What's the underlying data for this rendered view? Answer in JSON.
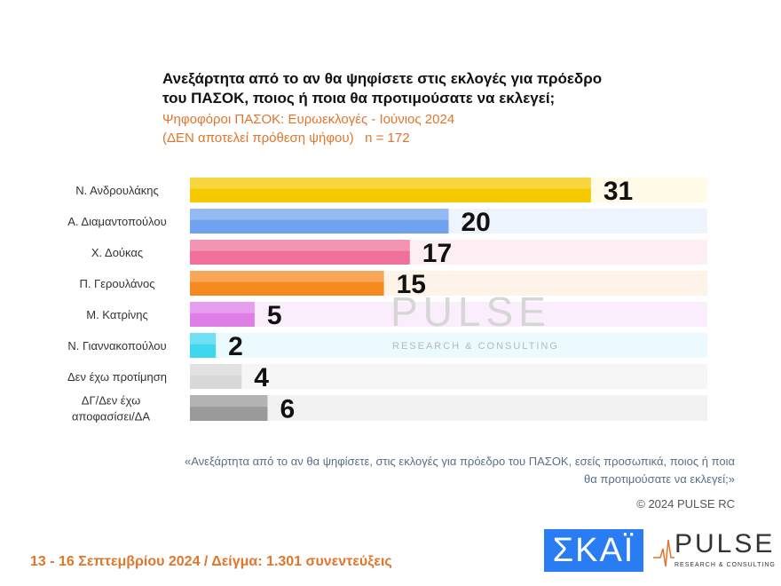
{
  "title": "Ανεξάρτητα από το αν θα ψηφίσετε στις εκλογές για πρόεδρο του ΠΑΣΟΚ, ποιος ή ποια θα προτιμούσατε να εκλεγεί;",
  "subtitle_line1": "Ψηφοφόροι ΠΑΣΟΚ: Ευρωεκλογές - Ιούνιος 2024",
  "subtitle_line2": "(ΔΕΝ αποτελεί πρόθεση ψήφου)   n = 172",
  "watermark": "PULSE",
  "watermark_sub": "RESEARCH & CONSULTING",
  "note": "«Ανεξάρτητα από το αν θα ψηφίσετε, στις εκλογές για πρόεδρο του ΠΑΣΟΚ, εσείς προσωπικά, ποιος ή ποια θα προτιμούσατε να εκλεγεί;»",
  "copyright": "© 2024 PULSE RC",
  "footer": "13 - 16 Σεπτεμβρίου 2024  /  Δείγμα:  1.301 συνεντεύξεις",
  "logos": {
    "skai": "ΣΚΑΪ",
    "pulse": "PULSE",
    "pulse_sub": "RESEARCH & CONSULTING"
  },
  "chart_data": {
    "type": "bar",
    "orientation": "horizontal",
    "categories": [
      "Ν. Ανδρουλάκης",
      "Α. Διαμαντοπούλου",
      "Χ. Δούκας",
      "Π. Γερουλάνος",
      "Μ. Κατρίνης",
      "Ν. Γιαννακοπούλου",
      "Δεν έχω προτίμηση",
      "ΔΓ/Δεν έχω αποφασίσει/ΔΑ"
    ],
    "values": [
      31,
      20,
      17,
      15,
      5,
      2,
      4,
      6
    ],
    "colors": [
      "#f5c800",
      "#6fa3ef",
      "#f0709a",
      "#f58a1f",
      "#e07ee8",
      "#3fd6f0",
      "#d8d8d8",
      "#9a9a9a"
    ],
    "track_colors": [
      "#fffbe6",
      "#eef4fd",
      "#fdeef3",
      "#fef3e8",
      "#fbeefc",
      "#eafaff",
      "#f6f6f6",
      "#f2f2f2"
    ],
    "xlim": [
      0,
      40
    ],
    "grid": false,
    "legend": "none"
  }
}
